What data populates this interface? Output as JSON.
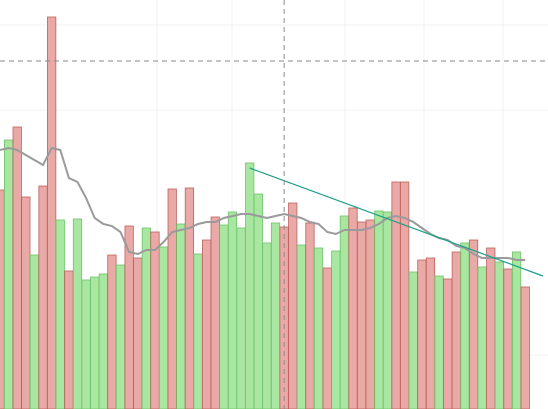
{
  "chart_data": {
    "type": "bar",
    "ylim": [
      0,
      409
    ],
    "xlim": [
      0,
      61
    ],
    "palette": {
      "up": "#a9e6a1",
      "down": "#e9a9a7"
    },
    "edge_palette": {
      "up": "#6fc36a",
      "down": "#c0605c"
    },
    "values": [
      219,
      269,
      282,
      212,
      154,
      223,
      392,
      189,
      138,
      190,
      129,
      132,
      135,
      154,
      144,
      183,
      151,
      181,
      177,
      162,
      220,
      185,
      221,
      155,
      169,
      192,
      184,
      197,
      181,
      246,
      215,
      166,
      186,
      182,
      206,
      164,
      186,
      161,
      141,
      158,
      193,
      201,
      187,
      189,
      198,
      197,
      227,
      227,
      137,
      149,
      151,
      133,
      130,
      157,
      166,
      169,
      142,
      161,
      147,
      140,
      157,
      122
    ],
    "directions": [
      "down",
      "up",
      "down",
      "down",
      "up",
      "down",
      "down",
      "up",
      "down",
      "up",
      "up",
      "up",
      "up",
      "down",
      "up",
      "down",
      "down",
      "up",
      "down",
      "up",
      "down",
      "up",
      "down",
      "up",
      "down",
      "down",
      "up",
      "up",
      "up",
      "up",
      "up",
      "up",
      "up",
      "down",
      "down",
      "up",
      "down",
      "up",
      "down",
      "up",
      "up",
      "down",
      "down",
      "down",
      "up",
      "up",
      "down",
      "down",
      "up",
      "down",
      "down",
      "up",
      "down",
      "down",
      "up",
      "down",
      "up",
      "down",
      "up",
      "down",
      "up",
      "down"
    ],
    "average": {
      "color": "#9a9a9a",
      "values": [
        259,
        261,
        259,
        254,
        249,
        244,
        261,
        259,
        231,
        227,
        211,
        191,
        185,
        183,
        177,
        157,
        155,
        159,
        159,
        167,
        177,
        179,
        181,
        185,
        187,
        187,
        191,
        193,
        195,
        195,
        193,
        191,
        193,
        195,
        193,
        191,
        187,
        185,
        177,
        175,
        179,
        179,
        179,
        181,
        185,
        191,
        193,
        191,
        187,
        181,
        175,
        171,
        169,
        163,
        161,
        155,
        151,
        151,
        151,
        151,
        149,
        149
      ]
    },
    "trendline": {
      "color": "#1a9e8a",
      "x": [
        29,
        63.06
      ],
      "values": [
        241,
        133
      ]
    },
    "crosshair": {
      "color": "#8a8a8a",
      "x": 33,
      "value": 348
    }
  }
}
